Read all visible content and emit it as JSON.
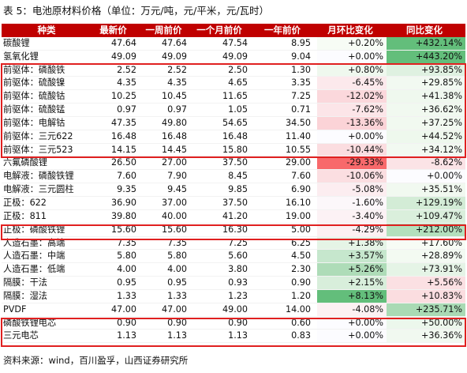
{
  "title": "表 5：电池原材料价格（单位：万元/吨，元/平米，元/瓦时）",
  "columns": [
    "种类",
    "最新价",
    "一周前价",
    "一个月前价",
    "一年前价",
    "月环比变化",
    "同比变化"
  ],
  "rows": [
    {
      "name": "碳酸锂",
      "latest": "47.64",
      "week": "47.64",
      "month": "47.54",
      "year": "8.95",
      "mom": "+0.20%",
      "yoy": "+432.14%",
      "mom_color": "#f7fcf5",
      "yoy_color": "#63be7b"
    },
    {
      "name": "氢氧化锂",
      "latest": "49.09",
      "week": "49.09",
      "month": "49.09",
      "year": "9.04",
      "mom": "+0.00%",
      "yoy": "+443.20%",
      "mom_color": "#fcfcff",
      "yoy_color": "#63be7b"
    },
    {
      "name": "前驱体：磷酸铁",
      "latest": "2.52",
      "week": "2.52",
      "month": "2.50",
      "year": "1.30",
      "mom": "+0.80%",
      "yoy": "+93.85%",
      "mom_color": "#eff8ee",
      "yoy_color": "#dff1e1"
    },
    {
      "name": "前驱体：硫酸镍",
      "latest": "4.35",
      "week": "4.35",
      "month": "4.65",
      "year": "3.35",
      "mom": "-6.45%",
      "yoy": "+29.85%",
      "mom_color": "#fce9ec",
      "yoy_color": "#f2f9f1"
    },
    {
      "name": "前驱体：硫酸钴",
      "latest": "10.25",
      "week": "10.45",
      "month": "11.65",
      "year": "7.25",
      "mom": "-12.02%",
      "yoy": "+41.38%",
      "mom_color": "#fbd8dc",
      "yoy_color": "#eff8ee"
    },
    {
      "name": "前驱体：硫酸锰",
      "latest": "0.97",
      "week": "0.97",
      "month": "1.05",
      "year": "0.71",
      "mom": "-7.62%",
      "yoy": "+36.62%",
      "mom_color": "#fce5e8",
      "yoy_color": "#f1f9f0"
    },
    {
      "name": "前驱体：电解钴",
      "latest": "47.35",
      "week": "49.80",
      "month": "54.65",
      "year": "34.50",
      "mom": "-13.36%",
      "yoy": "+37.25%",
      "mom_color": "#fbd3d7",
      "yoy_color": "#f1f9f0"
    },
    {
      "name": "前驱体：三元622",
      "latest": "16.48",
      "week": "16.48",
      "month": "16.48",
      "year": "11.40",
      "mom": "+0.00%",
      "yoy": "+44.52%",
      "mom_color": "#fcfcff",
      "yoy_color": "#eef8ed"
    },
    {
      "name": "前驱体：三元523",
      "latest": "14.15",
      "week": "14.45",
      "month": "15.80",
      "year": "10.55",
      "mom": "-10.44%",
      "yoy": "+34.12%",
      "mom_color": "#fbdde0",
      "yoy_color": "#f2f9f1"
    },
    {
      "name": "六氟磷酸锂",
      "latest": "26.50",
      "week": "27.00",
      "month": "37.50",
      "year": "29.00",
      "mom": "-29.33%",
      "yoy": "-8.62%",
      "mom_color": "#f8696b",
      "yoy_color": "#fbe3e6"
    },
    {
      "name": "电解液：磷酸铁锂",
      "latest": "7.60",
      "week": "7.90",
      "month": "8.45",
      "year": "7.60",
      "mom": "-10.06%",
      "yoy": "+0.00%",
      "mom_color": "#fbdee1",
      "yoy_color": "#fcfcff"
    },
    {
      "name": "电解液：三元圆柱",
      "latest": "9.35",
      "week": "9.45",
      "month": "9.85",
      "year": "6.90",
      "mom": "-5.08%",
      "yoy": "+35.51%",
      "mom_color": "#fcedf0",
      "yoy_color": "#f1f9f0"
    },
    {
      "name": "正极：622",
      "latest": "36.90",
      "week": "37.00",
      "month": "37.50",
      "year": "16.10",
      "mom": "-1.60%",
      "yoy": "+129.19%",
      "mom_color": "#fcf7fa",
      "yoy_color": "#d3ecd6"
    },
    {
      "name": "正极：811",
      "latest": "39.80",
      "week": "40.00",
      "month": "41.20",
      "year": "19.00",
      "mom": "-3.40%",
      "yoy": "+109.47%",
      "mom_color": "#fcf2f5",
      "yoy_color": "#daefdc"
    },
    {
      "name": "正极：磷酸铁锂",
      "latest": "15.60",
      "week": "15.60",
      "month": "16.30",
      "year": "5.00",
      "mom": "-4.29%",
      "yoy": "+212.00%",
      "mom_color": "#fcf0f2",
      "yoy_color": "#b3e0bd"
    },
    {
      "name": "人造石墨：高端",
      "latest": "7.35",
      "week": "7.35",
      "month": "7.25",
      "year": "6.25",
      "mom": "+1.38%",
      "yoy": "+17.60%",
      "mom_color": "#e5f4e6",
      "yoy_color": "#f7fcf5"
    },
    {
      "name": "人造石墨：中端",
      "latest": "5.80",
      "week": "5.80",
      "month": "5.60",
      "year": "4.50",
      "mom": "+3.57%",
      "yoy": "+28.89%",
      "mom_color": "#c6e7cd",
      "yoy_color": "#f3faf2"
    },
    {
      "name": "人造石墨：低端",
      "latest": "4.00",
      "week": "4.00",
      "month": "3.80",
      "year": "2.30",
      "mom": "+5.26%",
      "yoy": "+73.91%",
      "mom_color": "#aedcb8",
      "yoy_color": "#e5f4e6"
    },
    {
      "name": "隔膜：干法",
      "latest": "0.95",
      "week": "0.95",
      "month": "0.93",
      "year": "0.90",
      "mom": "+2.15%",
      "yoy": "+5.56%",
      "mom_color": "#d8eedb",
      "yoy_color": "#fbe0e3"
    },
    {
      "name": "隔膜：湿法",
      "latest": "1.33",
      "week": "1.33",
      "month": "1.23",
      "year": "1.20",
      "mom": "+8.13%",
      "yoy": "+10.83%",
      "mom_color": "#63be7b",
      "yoy_color": "#fbdde0"
    },
    {
      "name": "PVDF",
      "latest": "47.00",
      "week": "47.00",
      "month": "49.00",
      "year": "14.00",
      "mom": "-4.08%",
      "yoy": "+235.71%",
      "mom_color": "#fcf1f3",
      "yoy_color": "#a9dab4"
    },
    {
      "name": "磷酸铁锂电芯",
      "latest": "0.90",
      "week": "0.90",
      "month": "0.90",
      "year": "0.60",
      "mom": "+0.00%",
      "yoy": "+50.00%",
      "mom_color": "#fcfcff",
      "yoy_color": "#ecf7ec"
    },
    {
      "name": "三元电芯",
      "latest": "1.13",
      "week": "1.13",
      "month": "1.13",
      "year": "0.83",
      "mom": "+0.00%",
      "yoy": "+36.36%",
      "mom_color": "#fcfcff",
      "yoy_color": "#f1f9f0"
    }
  ],
  "source": {
    "label": "资料来源：",
    "text": "wind，百川盈孚，山西证券研究所"
  },
  "highlight_color": "#e02020"
}
